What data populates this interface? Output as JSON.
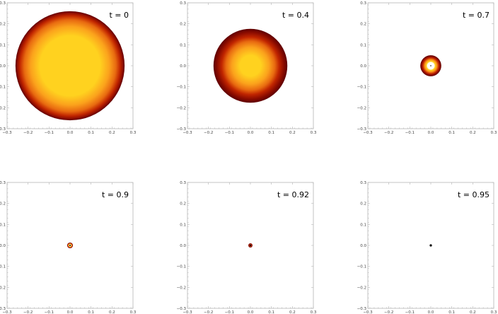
{
  "chart_data": [
    {
      "type": "heatmap",
      "time_label": "t = 0",
      "radius": 0.26,
      "core": "#ffd21f",
      "profile": "wide",
      "xlim": [
        -0.3,
        0.3
      ],
      "ylim": [
        -0.3,
        0.3
      ],
      "xticks": [
        "-0.3",
        "-0.2",
        "-0.1",
        "0.0",
        "0.1",
        "0.2",
        "0.3"
      ],
      "yticks": [
        "0.3",
        "0.2",
        "0.1",
        "0.0",
        "-0.1",
        "-0.2",
        "-0.3"
      ]
    },
    {
      "type": "heatmap",
      "time_label": "t = 0.4",
      "radius": 0.176,
      "core": "#ffd21f",
      "profile": "medium",
      "xlim": [
        -0.3,
        0.3
      ],
      "ylim": [
        -0.3,
        0.3
      ],
      "xticks": [
        "-0.3",
        "-0.2",
        "-0.1",
        "0.0",
        "0.1",
        "0.2",
        "0.3"
      ],
      "yticks": [
        "0.3",
        "0.2",
        "0.1",
        "0.0",
        "-0.1",
        "-0.2",
        "-0.3"
      ]
    },
    {
      "type": "heatmap",
      "time_label": "t = 0.7",
      "radius": 0.05,
      "core": "#ffffff",
      "profile": "hot",
      "center_dot": 0.0025,
      "xlim": [
        -0.3,
        0.3
      ],
      "ylim": [
        -0.3,
        0.3
      ],
      "xticks": [
        "-0.3",
        "-0.2",
        "-0.1",
        "0.0",
        "0.1",
        "0.2",
        "0.3"
      ],
      "yticks": [
        "0.3",
        "0.2",
        "0.1",
        "0.0",
        "-0.1",
        "-0.2",
        "-0.3"
      ]
    },
    {
      "type": "heatmap",
      "time_label": "t = 0.9",
      "radius": 0.0135,
      "core": "#ffffff",
      "profile": "hot",
      "center_dot": 0.0035,
      "xlim": [
        -0.3,
        0.3
      ],
      "ylim": [
        -0.3,
        0.3
      ],
      "xticks": [
        "-0.3",
        "-0.2",
        "-0.1",
        "0.0",
        "0.1",
        "0.2",
        "0.3"
      ],
      "yticks": [
        "0.3",
        "0.2",
        "0.1",
        "0.0",
        "-0.1",
        "-0.2",
        "-0.3"
      ]
    },
    {
      "type": "heatmap",
      "time_label": "t = 0.92",
      "radius": 0.01,
      "core": "#e03a10",
      "profile": "small",
      "center_dot": 0.004,
      "xlim": [
        -0.3,
        0.3
      ],
      "ylim": [
        -0.3,
        0.3
      ],
      "xticks": [
        "-0.3",
        "-0.2",
        "-0.1",
        "0.0",
        "0.1",
        "0.2",
        "0.3"
      ],
      "yticks": [
        "0.3",
        "0.2",
        "0.1",
        "0.0",
        "-0.1",
        "-0.2",
        "-0.3"
      ]
    },
    {
      "type": "heatmap",
      "time_label": "t = 0.95",
      "radius": 0.0055,
      "core": "#000000",
      "profile": "black",
      "xlim": [
        -0.3,
        0.3
      ],
      "ylim": [
        -0.3,
        0.3
      ],
      "xticks": [
        "-0.3",
        "-0.2",
        "-0.1",
        "0.0",
        "0.1",
        "0.2",
        "0.3"
      ],
      "yticks": [
        "0.3",
        "0.2",
        "0.1",
        "0.0",
        "-0.1",
        "-0.2",
        "-0.3"
      ]
    }
  ],
  "colors": {
    "edge": "#5e0000",
    "dark_red": "#8c0c00",
    "red": "#c02500",
    "orange": "#e86a10",
    "amber": "#fba21c",
    "yellow": "#ffd21f",
    "white": "#ffffff",
    "frame": "#b5b5b5"
  }
}
